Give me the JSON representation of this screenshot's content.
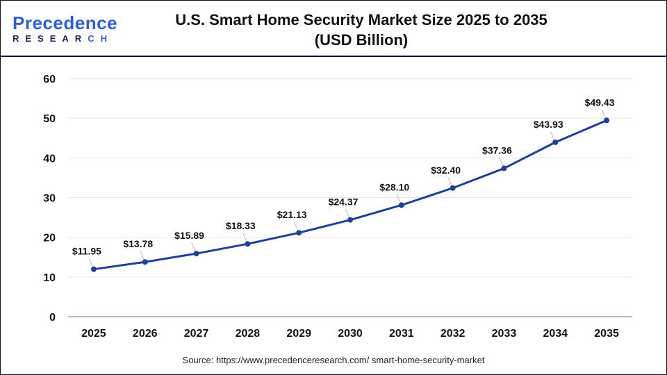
{
  "logo": {
    "line1a": "P",
    "line1b": "recede",
    "line1c": "nce",
    "line2a": "RESEAR",
    "line2b": "CH"
  },
  "title_line1": "U.S. Smart Home Security Market Size 2025 to 2035",
  "title_line2": "(USD Billion)",
  "source": "Source: https://www.precedenceresearch.com/ smart-home-security-market",
  "colors": {
    "line": "#1f3f9e",
    "header_rule": "#0c1440",
    "grid": "#e6e6e6"
  },
  "chart_data": {
    "type": "line",
    "title": "U.S. Smart Home Security Market Size 2025 to 2035 (USD Billion)",
    "categories": [
      "2025",
      "2026",
      "2027",
      "2028",
      "2029",
      "2030",
      "2031",
      "2032",
      "2033",
      "2034",
      "2035"
    ],
    "values": [
      11.95,
      13.78,
      15.89,
      18.33,
      21.13,
      24.37,
      28.1,
      32.4,
      37.36,
      43.93,
      49.43
    ],
    "labels": [
      "$11.95",
      "$13.78",
      "$15.89",
      "$18.33",
      "$21.13",
      "$24.37",
      "$28.10",
      "$32.40",
      "$37.36",
      "$43.93",
      "$49.43"
    ],
    "yticks": [
      "0",
      "10",
      "20",
      "30",
      "40",
      "50",
      "60"
    ],
    "ylim": [
      0,
      60
    ],
    "grid": true,
    "xlabel": "",
    "ylabel": ""
  }
}
